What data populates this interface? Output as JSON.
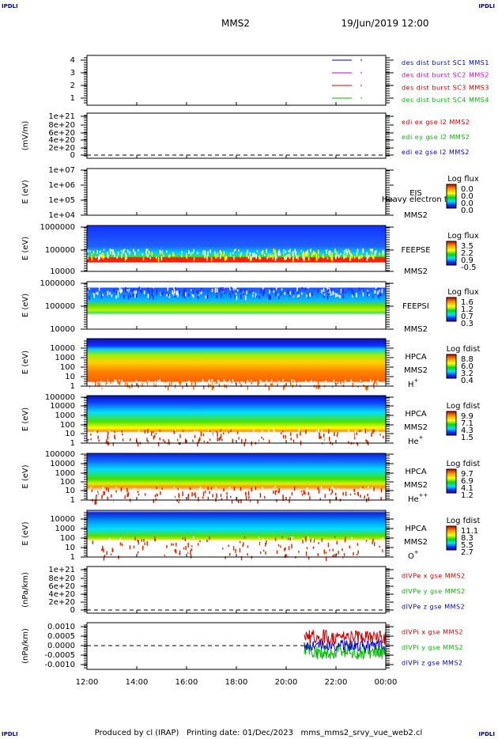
{
  "corner_label": "IPDLI",
  "title": "MMS2",
  "date": "19/Jun/2019 12:00",
  "footer": "Produced by cl (IRAP)   Printing date: 01/Dec/2023   mms_mms2_srvy_vue_web2.cl",
  "xticks": [
    "12:00",
    "14:00",
    "16:00",
    "18:00",
    "20:00",
    "22:00",
    "00:00"
  ],
  "panels": [
    {
      "yticks": [
        "4",
        "3",
        "2",
        "1"
      ],
      "right_labels": [
        {
          "text": "des dist burst SC1 MMS1",
          "color": "#0000cc"
        },
        {
          "text": "des dist burst SC2 MMS2",
          "color": "#cc00cc"
        },
        {
          "text": "des dist burst SC3 MMS3",
          "color": "#cc0000"
        },
        {
          "text": "des dist burst SC4 MMS4",
          "color": "#00bb00"
        }
      ]
    },
    {
      "ylabel": "(mV/m)",
      "yticks": [
        "1e+21",
        "8e+20",
        "6e+20",
        "4e+20",
        "2e+20",
        "0"
      ],
      "right_labels": [
        {
          "text": "edi ex gse l2 MMS2",
          "color": "#cc0000"
        },
        {
          "text": "edi ey gse l2 MMS2",
          "color": "#00bb00"
        },
        {
          "text": "edi ez gse l2 MMS2",
          "color": "#0000cc"
        }
      ]
    },
    {
      "ylabel": "E (eV)",
      "yticks": [
        "1e+07",
        "1e+06",
        "1e+05",
        "1e+04"
      ],
      "instrument": "EIS",
      "mission": "MMS2",
      "note": "Heavy electron to",
      "colorbar": {
        "title": "Log flux",
        "ticks": [
          "0.0",
          "0.0",
          "0.0",
          "0.0"
        ]
      }
    },
    {
      "ylabel": "E (eV)",
      "yticks": [
        "1000000",
        "100000",
        "10000"
      ],
      "instrument": "FEEPSE",
      "mission": "MMS2",
      "colorbar": {
        "title": "Log flux",
        "ticks": [
          "3.5",
          "2.2",
          "0.9",
          "-0.5"
        ]
      }
    },
    {
      "ylabel": "E (eV)",
      "yticks": [
        "1000000",
        "100000",
        "10000"
      ],
      "instrument": "FEEPSI",
      "mission": "MMS2",
      "colorbar": {
        "title": "Log flux",
        "ticks": [
          "1.6",
          "1.2",
          "0.7",
          "0.3"
        ]
      }
    },
    {
      "ylabel": "E (eV)",
      "yticks": [
        "10000",
        "1000",
        "100",
        "10",
        "1"
      ],
      "instrument": "HPCA",
      "mission": "MMS2",
      "species": "H",
      "charge": "+",
      "colorbar": {
        "title": "Log fdist",
        "ticks": [
          "8.8",
          "6.0",
          "3.2",
          "0.4"
        ]
      }
    },
    {
      "ylabel": "E (eV)",
      "yticks": [
        "100000",
        "10000",
        "1000",
        "100",
        "10",
        "1"
      ],
      "instrument": "HPCA",
      "mission": "MMS2",
      "species": "He",
      "charge": "+",
      "colorbar": {
        "title": "Log fdist",
        "ticks": [
          "9.9",
          "7.1",
          "4.3",
          "1.5"
        ]
      }
    },
    {
      "ylabel": "E (eV)",
      "yticks": [
        "100000",
        "10000",
        "1000",
        "100",
        "10",
        "1"
      ],
      "instrument": "HPCA",
      "mission": "MMS2",
      "species": "He",
      "charge": "++",
      "colorbar": {
        "title": "Log fdist",
        "ticks": [
          "9.7",
          "6.9",
          "4.1",
          "1.2"
        ]
      }
    },
    {
      "ylabel": "E (eV)",
      "yticks": [
        "10000",
        "1000",
        "100",
        "10",
        "1"
      ],
      "instrument": "HPCA",
      "mission": "MMS2",
      "species": "O",
      "charge": "+",
      "colorbar": {
        "title": "Log fdist",
        "ticks": [
          "11.1",
          "8.3",
          "5.5",
          "2.7"
        ]
      }
    },
    {
      "ylabel": "(nPa/km)",
      "yticks": [
        "1e+21",
        "8e+20",
        "6e+20",
        "4e+20",
        "2e+20",
        "0"
      ],
      "right_labels": [
        {
          "text": "dlVPe x gse MMS2",
          "color": "#cc0000"
        },
        {
          "text": "dlVPe y gse MMS2",
          "color": "#00bb00"
        },
        {
          "text": "dlVPe z gse MMS2",
          "color": "#0000cc"
        }
      ]
    },
    {
      "ylabel": "(nPa/km)",
      "yticks": [
        "0.0010",
        "0.0005",
        "0.0000",
        "-0.0005",
        "-0.0010"
      ],
      "right_labels": [
        {
          "text": "dlVPi x gse MMS2",
          "color": "#cc0000"
        },
        {
          "text": "dlVPi y gse MMS2",
          "color": "#00bb00"
        },
        {
          "text": "dlVPi z gse MMS2",
          "color": "#0000cc"
        }
      ]
    }
  ]
}
